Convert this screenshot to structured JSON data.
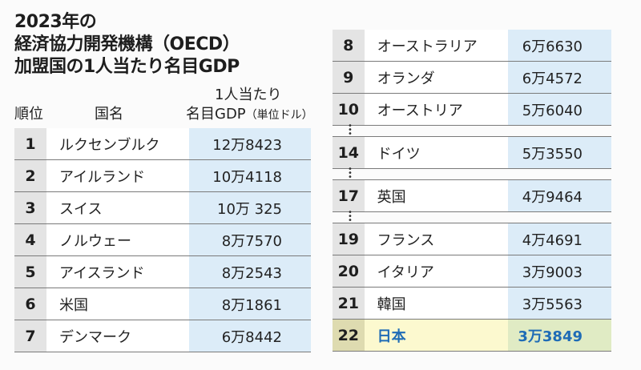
{
  "title": {
    "line1": "2023年の",
    "line2": "経済協力開発機構（OECD）",
    "line3": "加盟国の1人当たり名目GDP"
  },
  "headers": {
    "rank": "順位",
    "country": "国名",
    "gdp_line1": "1人当たり",
    "gdp_line2": "名目GDP",
    "unit": "（単位ドル）"
  },
  "left_rows": [
    {
      "rank": "1",
      "country": "ルクセンブルク",
      "gdp": "12万8423"
    },
    {
      "rank": "2",
      "country": "アイルランド",
      "gdp": "10万4118"
    },
    {
      "rank": "3",
      "country": "スイス",
      "gdp": "10万 325"
    },
    {
      "rank": "4",
      "country": "ノルウェー",
      "gdp": "8万7570"
    },
    {
      "rank": "5",
      "country": "アイスランド",
      "gdp": "8万2543"
    },
    {
      "rank": "6",
      "country": "米国",
      "gdp": "8万1861"
    },
    {
      "rank": "7",
      "country": "デンマーク",
      "gdp": "6万8442"
    }
  ],
  "right_rows": [
    {
      "rank": "8",
      "country": "オーストラリア",
      "gdp": "6万6630"
    },
    {
      "rank": "9",
      "country": "オランダ",
      "gdp": "6万4572"
    },
    {
      "rank": "10",
      "country": "オーストリア",
      "gdp": "5万6040"
    },
    {
      "rank": "14",
      "country": "ドイツ",
      "gdp": "5万3550"
    },
    {
      "rank": "17",
      "country": "英国",
      "gdp": "4万9464"
    },
    {
      "rank": "19",
      "country": "フランス",
      "gdp": "4万4691"
    },
    {
      "rank": "20",
      "country": "イタリア",
      "gdp": "3万9003"
    },
    {
      "rank": "21",
      "country": "韓国",
      "gdp": "3万5563"
    },
    {
      "rank": "22",
      "country": "日本",
      "gdp": "3万3849",
      "highlight": true
    }
  ],
  "colors": {
    "highlight_text": "#1f6cb6",
    "value_bg": "#dcecf8",
    "rank_bg": "#e4e4e4"
  }
}
